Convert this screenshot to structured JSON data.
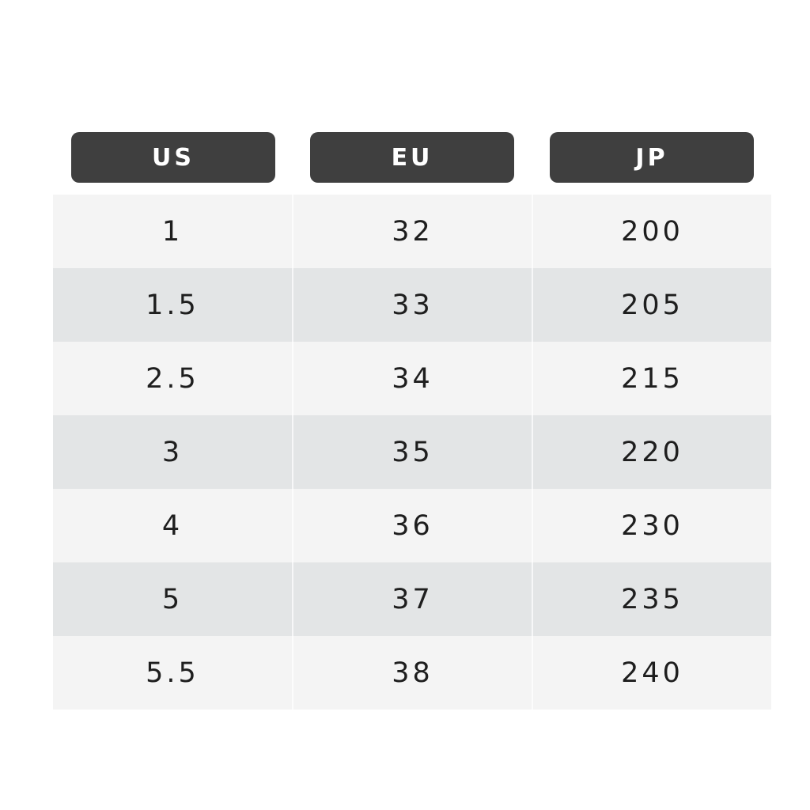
{
  "table": {
    "header": [
      "US",
      "EU",
      "JP"
    ],
    "rows": [
      [
        "1",
        "32",
        "200"
      ],
      [
        "1.5",
        "33",
        "205"
      ],
      [
        "2.5",
        "34",
        "215"
      ],
      [
        "3",
        "35",
        "220"
      ],
      [
        "4",
        "36",
        "230"
      ],
      [
        "5",
        "37",
        "235"
      ],
      [
        "5.5",
        "38",
        "240"
      ]
    ]
  }
}
